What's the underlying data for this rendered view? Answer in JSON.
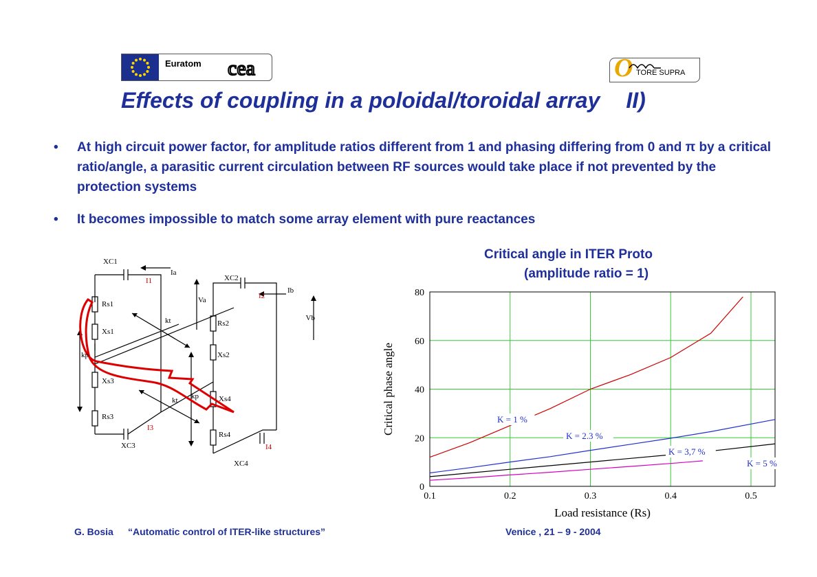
{
  "header": {
    "euratom_label": "Euratom",
    "cea_label": "cea",
    "tore_supra_label": "TORE SUPRA",
    "tore_supra_letter": "T"
  },
  "title": {
    "main": "Effects of coupling in a poloidal/toroidal array",
    "part": "II)"
  },
  "bullets": [
    "At high circuit power factor, for amplitude ratios different from 1 and phasing  differing from 0 and π  by a critical ratio/angle, a  parasitic current circulation between RF sources would take place if not prevented by the protection systems",
    "It becomes impossible to match some array element with pure reactances"
  ],
  "circuit": {
    "labels": {
      "xc1": "XC1",
      "xc2": "XC2",
      "xc3": "XC3",
      "xc4": "XC4",
      "rs1": "Rs1",
      "rs2": "Rs2",
      "rs3": "Rs3",
      "rs4": "Rs4",
      "xs1": "Xs1",
      "xs2": "Xs2",
      "xs3": "Xs3",
      "xs4": "Xs4",
      "i1": "I1",
      "i2": "I2",
      "i3": "I3",
      "i4": "I4",
      "ia": "Ia",
      "ib": "Ib",
      "va": "Va",
      "vb": "Vb",
      "kt_top": "kt",
      "kt_bottom": "kt",
      "kp_left": "kp",
      "kp_center": "kp"
    },
    "colors": {
      "wire": "#000000",
      "current_label": "#cc0000",
      "arrow": "#dd0000"
    }
  },
  "chart_title_line1": "Critical angle in ITER Proto",
  "chart_title_line2": "(amplitude ratio = 1)",
  "chart_data": {
    "type": "line",
    "xlabel": "Load resistance (Rs)",
    "ylabel": "Critical phase angle",
    "xlim": [
      0.1,
      0.53
    ],
    "ylim": [
      0,
      80
    ],
    "xticks": [
      "0.1",
      "0.2",
      "0.3",
      "0.4",
      "0.5"
    ],
    "yticks": [
      "0",
      "20",
      "40",
      "60",
      "80"
    ],
    "grid": true,
    "series": [
      {
        "name": "K = 1 %",
        "color": "#cc0000",
        "x": [
          0.1,
          0.15,
          0.2,
          0.25,
          0.3,
          0.35,
          0.4,
          0.45,
          0.49
        ],
        "y": [
          12,
          18,
          25,
          32,
          40,
          46,
          53,
          63,
          78
        ]
      },
      {
        "name": "K = 2.3 %",
        "color": "#1f2fd0",
        "x": [
          0.1,
          0.15,
          0.2,
          0.25,
          0.3,
          0.35,
          0.4,
          0.45,
          0.53
        ],
        "y": [
          5.5,
          7.7,
          10,
          12.2,
          14.8,
          17.3,
          19.8,
          22.5,
          27.5
        ]
      },
      {
        "name": "K = 3,7 %",
        "color": "#000000",
        "x": [
          0.1,
          0.15,
          0.2,
          0.25,
          0.3,
          0.35,
          0.4,
          0.45,
          0.53
        ],
        "y": [
          4,
          5.5,
          7,
          8.5,
          10,
          11.5,
          13,
          14.5,
          17.5
        ]
      },
      {
        "name": "K = 5 %",
        "color": "#d400c0",
        "x": [
          0.1,
          0.15,
          0.2,
          0.25,
          0.3,
          0.35,
          0.4,
          0.44
        ],
        "y": [
          2.5,
          3.5,
          4.7,
          5.8,
          7,
          8.2,
          9.4,
          10.5
        ]
      }
    ]
  },
  "footer": {
    "author": "G. Bosia",
    "talk": "“Automatic control of ITER-like structures”",
    "venue_date": "Venice , 21 – 9 - 2004"
  },
  "colors": {
    "text_blue": "#1e2f9a",
    "grid_green": "#33cc33",
    "label_blue": "#1f2fd0"
  }
}
